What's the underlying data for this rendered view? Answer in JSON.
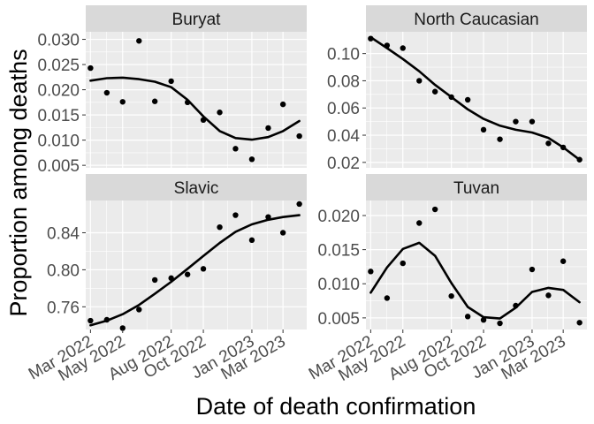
{
  "chart_data": {
    "type": "scatter",
    "xlabel": "Date of death confirmation",
    "ylabel": "Proportion among deaths",
    "x_ticks": [
      "Mar 2022",
      "May 2022",
      "Aug 2022",
      "Oct 2022",
      "Jan 2023",
      "Mar 2023"
    ],
    "x_range": [
      "2022-02-20",
      "2023-04-15"
    ],
    "fit": "smoothed trend line",
    "panels": [
      {
        "name": "Buryat",
        "y_ticks": [
          "0.005",
          "0.010",
          "0.015",
          "0.020",
          "0.025",
          "0.030"
        ],
        "ylim": [
          0.0045,
          0.0315
        ],
        "points": [
          {
            "x": "2022-03-01",
            "y": 0.0243
          },
          {
            "x": "2022-04-01",
            "y": 0.0194
          },
          {
            "x": "2022-05-01",
            "y": 0.0176
          },
          {
            "x": "2022-06-01",
            "y": 0.0297
          },
          {
            "x": "2022-07-01",
            "y": 0.0177
          },
          {
            "x": "2022-08-01",
            "y": 0.0217
          },
          {
            "x": "2022-09-01",
            "y": 0.0175
          },
          {
            "x": "2022-10-01",
            "y": 0.014
          },
          {
            "x": "2022-11-01",
            "y": 0.0155
          },
          {
            "x": "2022-12-01",
            "y": 0.0083
          },
          {
            "x": "2023-01-01",
            "y": 0.0062
          },
          {
            "x": "2023-02-01",
            "y": 0.0124
          },
          {
            "x": "2023-03-01",
            "y": 0.0171
          },
          {
            "x": "2023-04-01",
            "y": 0.0108
          }
        ],
        "smooth": [
          {
            "x": "2022-03-01",
            "y": 0.0218
          },
          {
            "x": "2022-04-01",
            "y": 0.0223
          },
          {
            "x": "2022-05-01",
            "y": 0.0224
          },
          {
            "x": "2022-06-01",
            "y": 0.0221
          },
          {
            "x": "2022-07-01",
            "y": 0.0216
          },
          {
            "x": "2022-08-01",
            "y": 0.0205
          },
          {
            "x": "2022-09-01",
            "y": 0.018
          },
          {
            "x": "2022-10-01",
            "y": 0.0147
          },
          {
            "x": "2022-11-01",
            "y": 0.0118
          },
          {
            "x": "2022-12-01",
            "y": 0.0104
          },
          {
            "x": "2023-01-01",
            "y": 0.0101
          },
          {
            "x": "2023-02-01",
            "y": 0.0106
          },
          {
            "x": "2023-03-01",
            "y": 0.0118
          },
          {
            "x": "2023-04-01",
            "y": 0.0138
          }
        ]
      },
      {
        "name": "North Caucasian",
        "y_ticks": [
          "0.02",
          "0.04",
          "0.06",
          "0.08",
          "0.10"
        ],
        "ylim": [
          0.016,
          0.116
        ],
        "points": [
          {
            "x": "2022-03-01",
            "y": 0.111
          },
          {
            "x": "2022-04-01",
            "y": 0.106
          },
          {
            "x": "2022-05-01",
            "y": 0.104
          },
          {
            "x": "2022-06-01",
            "y": 0.08
          },
          {
            "x": "2022-07-01",
            "y": 0.072
          },
          {
            "x": "2022-08-01",
            "y": 0.068
          },
          {
            "x": "2022-09-01",
            "y": 0.066
          },
          {
            "x": "2022-10-01",
            "y": 0.044
          },
          {
            "x": "2022-11-01",
            "y": 0.037
          },
          {
            "x": "2022-12-01",
            "y": 0.05
          },
          {
            "x": "2023-01-01",
            "y": 0.05
          },
          {
            "x": "2023-02-01",
            "y": 0.034
          },
          {
            "x": "2023-03-01",
            "y": 0.031
          },
          {
            "x": "2023-04-01",
            "y": 0.022
          }
        ],
        "smooth": [
          {
            "x": "2022-03-01",
            "y": 0.112
          },
          {
            "x": "2022-04-01",
            "y": 0.104
          },
          {
            "x": "2022-05-01",
            "y": 0.096
          },
          {
            "x": "2022-06-01",
            "y": 0.087
          },
          {
            "x": "2022-07-01",
            "y": 0.077
          },
          {
            "x": "2022-08-01",
            "y": 0.068
          },
          {
            "x": "2022-09-01",
            "y": 0.059
          },
          {
            "x": "2022-10-01",
            "y": 0.052
          },
          {
            "x": "2022-11-01",
            "y": 0.047
          },
          {
            "x": "2022-12-01",
            "y": 0.044
          },
          {
            "x": "2023-01-01",
            "y": 0.042
          },
          {
            "x": "2023-02-01",
            "y": 0.038
          },
          {
            "x": "2023-03-01",
            "y": 0.031
          },
          {
            "x": "2023-04-01",
            "y": 0.022
          }
        ]
      },
      {
        "name": "Slavic",
        "y_ticks": [
          "0.76",
          "0.80",
          "0.84"
        ],
        "ylim": [
          0.7355,
          0.8748
        ],
        "points": [
          {
            "x": "2022-03-01",
            "y": 0.745
          },
          {
            "x": "2022-04-01",
            "y": 0.746
          },
          {
            "x": "2022-05-01",
            "y": 0.737
          },
          {
            "x": "2022-06-01",
            "y": 0.757
          },
          {
            "x": "2022-07-01",
            "y": 0.789
          },
          {
            "x": "2022-08-01",
            "y": 0.791
          },
          {
            "x": "2022-09-01",
            "y": 0.795
          },
          {
            "x": "2022-10-01",
            "y": 0.801
          },
          {
            "x": "2022-11-01",
            "y": 0.846
          },
          {
            "x": "2022-12-01",
            "y": 0.859
          },
          {
            "x": "2023-01-01",
            "y": 0.832
          },
          {
            "x": "2023-02-01",
            "y": 0.857
          },
          {
            "x": "2023-03-01",
            "y": 0.84
          },
          {
            "x": "2023-04-01",
            "y": 0.871
          }
        ],
        "smooth": [
          {
            "x": "2022-03-01",
            "y": 0.74
          },
          {
            "x": "2022-04-01",
            "y": 0.745
          },
          {
            "x": "2022-05-01",
            "y": 0.752
          },
          {
            "x": "2022-06-01",
            "y": 0.762
          },
          {
            "x": "2022-07-01",
            "y": 0.774
          },
          {
            "x": "2022-08-01",
            "y": 0.787
          },
          {
            "x": "2022-09-01",
            "y": 0.801
          },
          {
            "x": "2022-10-01",
            "y": 0.815
          },
          {
            "x": "2022-11-01",
            "y": 0.829
          },
          {
            "x": "2022-12-01",
            "y": 0.841
          },
          {
            "x": "2023-01-01",
            "y": 0.849
          },
          {
            "x": "2023-02-01",
            "y": 0.854
          },
          {
            "x": "2023-03-01",
            "y": 0.857
          },
          {
            "x": "2023-04-01",
            "y": 0.859
          }
        ]
      },
      {
        "name": "Tuvan",
        "y_ticks": [
          "0.005",
          "0.010",
          "0.015",
          "0.020"
        ],
        "ylim": [
          0.0033,
          0.0222
        ],
        "points": [
          {
            "x": "2022-03-01",
            "y": 0.0118
          },
          {
            "x": "2022-04-01",
            "y": 0.0079
          },
          {
            "x": "2022-05-01",
            "y": 0.013
          },
          {
            "x": "2022-06-01",
            "y": 0.0189
          },
          {
            "x": "2022-07-01",
            "y": 0.0209
          },
          {
            "x": "2022-08-01",
            "y": 0.0082
          },
          {
            "x": "2022-09-01",
            "y": 0.0052
          },
          {
            "x": "2022-10-01",
            "y": 0.0047
          },
          {
            "x": "2022-11-01",
            "y": 0.0042
          },
          {
            "x": "2022-12-01",
            "y": 0.0068
          },
          {
            "x": "2023-01-01",
            "y": 0.0121
          },
          {
            "x": "2023-02-01",
            "y": 0.0083
          },
          {
            "x": "2023-03-01",
            "y": 0.0133
          },
          {
            "x": "2023-04-01",
            "y": 0.0043
          }
        ],
        "smooth": [
          {
            "x": "2022-03-01",
            "y": 0.0087
          },
          {
            "x": "2022-04-01",
            "y": 0.0124
          },
          {
            "x": "2022-05-01",
            "y": 0.0151
          },
          {
            "x": "2022-06-01",
            "y": 0.016
          },
          {
            "x": "2022-07-01",
            "y": 0.0141
          },
          {
            "x": "2022-08-01",
            "y": 0.0101
          },
          {
            "x": "2022-09-01",
            "y": 0.0066
          },
          {
            "x": "2022-10-01",
            "y": 0.0051
          },
          {
            "x": "2022-11-01",
            "y": 0.0049
          },
          {
            "x": "2022-12-01",
            "y": 0.0065
          },
          {
            "x": "2023-01-01",
            "y": 0.0088
          },
          {
            "x": "2023-02-01",
            "y": 0.0094
          },
          {
            "x": "2023-03-01",
            "y": 0.0091
          },
          {
            "x": "2023-04-01",
            "y": 0.0073
          }
        ]
      }
    ]
  }
}
